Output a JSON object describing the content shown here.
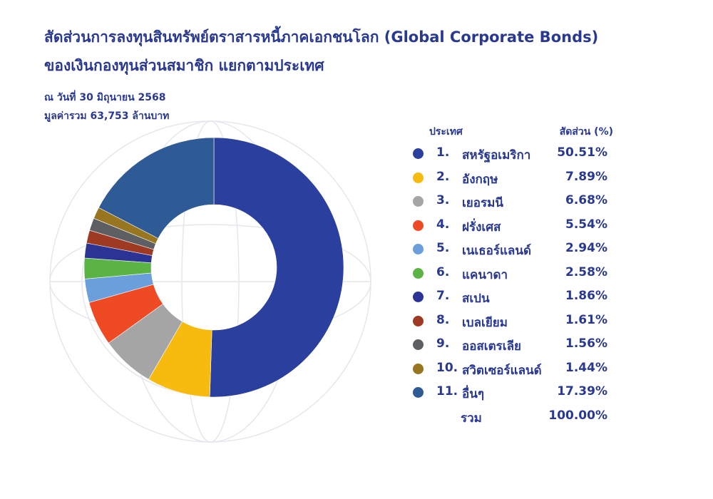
{
  "title_line1": "สัดส่วนการลงทุนสินทรัพย์ตราสารหนี้ภาคเอกชนโลก (Global Corporate Bonds)",
  "title_line2": "ของเงินกองทุนส่วนสมาชิก แยกตามประเทศ",
  "subtitle_date": "ณ วันที่ 30 มิถุนายน 2568",
  "subtitle_total": "มูลค่ารวม 63,753 ล้านบาท",
  "legend_header": {
    "country": "ประเทศ",
    "share": "สัดส่วน (%)"
  },
  "chart_data": {
    "type": "pie",
    "title": "สัดส่วนการลงทุนสินทรัพย์ตราสารหนี้ภาคเอกชนโลก (Global Corporate Bonds) ของเงินกองทุนส่วนสมาชิก แยกตามประเทศ",
    "donut": true,
    "legend_position": "right",
    "slices": [
      {
        "num": "1.",
        "label": "สหรัฐอเมริกา",
        "value": 50.51,
        "display": "50.51%",
        "color": "#2a3f9e"
      },
      {
        "num": "2.",
        "label": "อังกฤษ",
        "value": 7.89,
        "display": "7.89%",
        "color": "#f6bb0e"
      },
      {
        "num": "3.",
        "label": "เยอรมนี",
        "value": 6.68,
        "display": "6.68%",
        "color": "#a5a5a5"
      },
      {
        "num": "4.",
        "label": "ฝรั่งเศส",
        "value": 5.54,
        "display": "5.54%",
        "color": "#ee4b24"
      },
      {
        "num": "5.",
        "label": "เนเธอร์แลนด์",
        "value": 2.94,
        "display": "2.94%",
        "color": "#6b9fdb"
      },
      {
        "num": "6.",
        "label": "แคนาดา",
        "value": 2.58,
        "display": "2.58%",
        "color": "#5ab344"
      },
      {
        "num": "7.",
        "label": "สเปน",
        "value": 1.86,
        "display": "1.86%",
        "color": "#2b3494"
      },
      {
        "num": "8.",
        "label": "เบลเยียม",
        "value": 1.61,
        "display": "1.61%",
        "color": "#9e3a22"
      },
      {
        "num": "9.",
        "label": "ออสเตรเลีย",
        "value": 1.56,
        "display": "1.56%",
        "color": "#5d5f62"
      },
      {
        "num": "10.",
        "label": "สวิตเซอร์แลนด์",
        "value": 1.44,
        "display": "1.44%",
        "color": "#98751f"
      },
      {
        "num": "11.",
        "label": "อื่นๆ",
        "value": 17.39,
        "display": "17.39%",
        "color": "#2e5a95"
      }
    ],
    "total": {
      "label": "รวม",
      "display": "100.00%"
    }
  }
}
